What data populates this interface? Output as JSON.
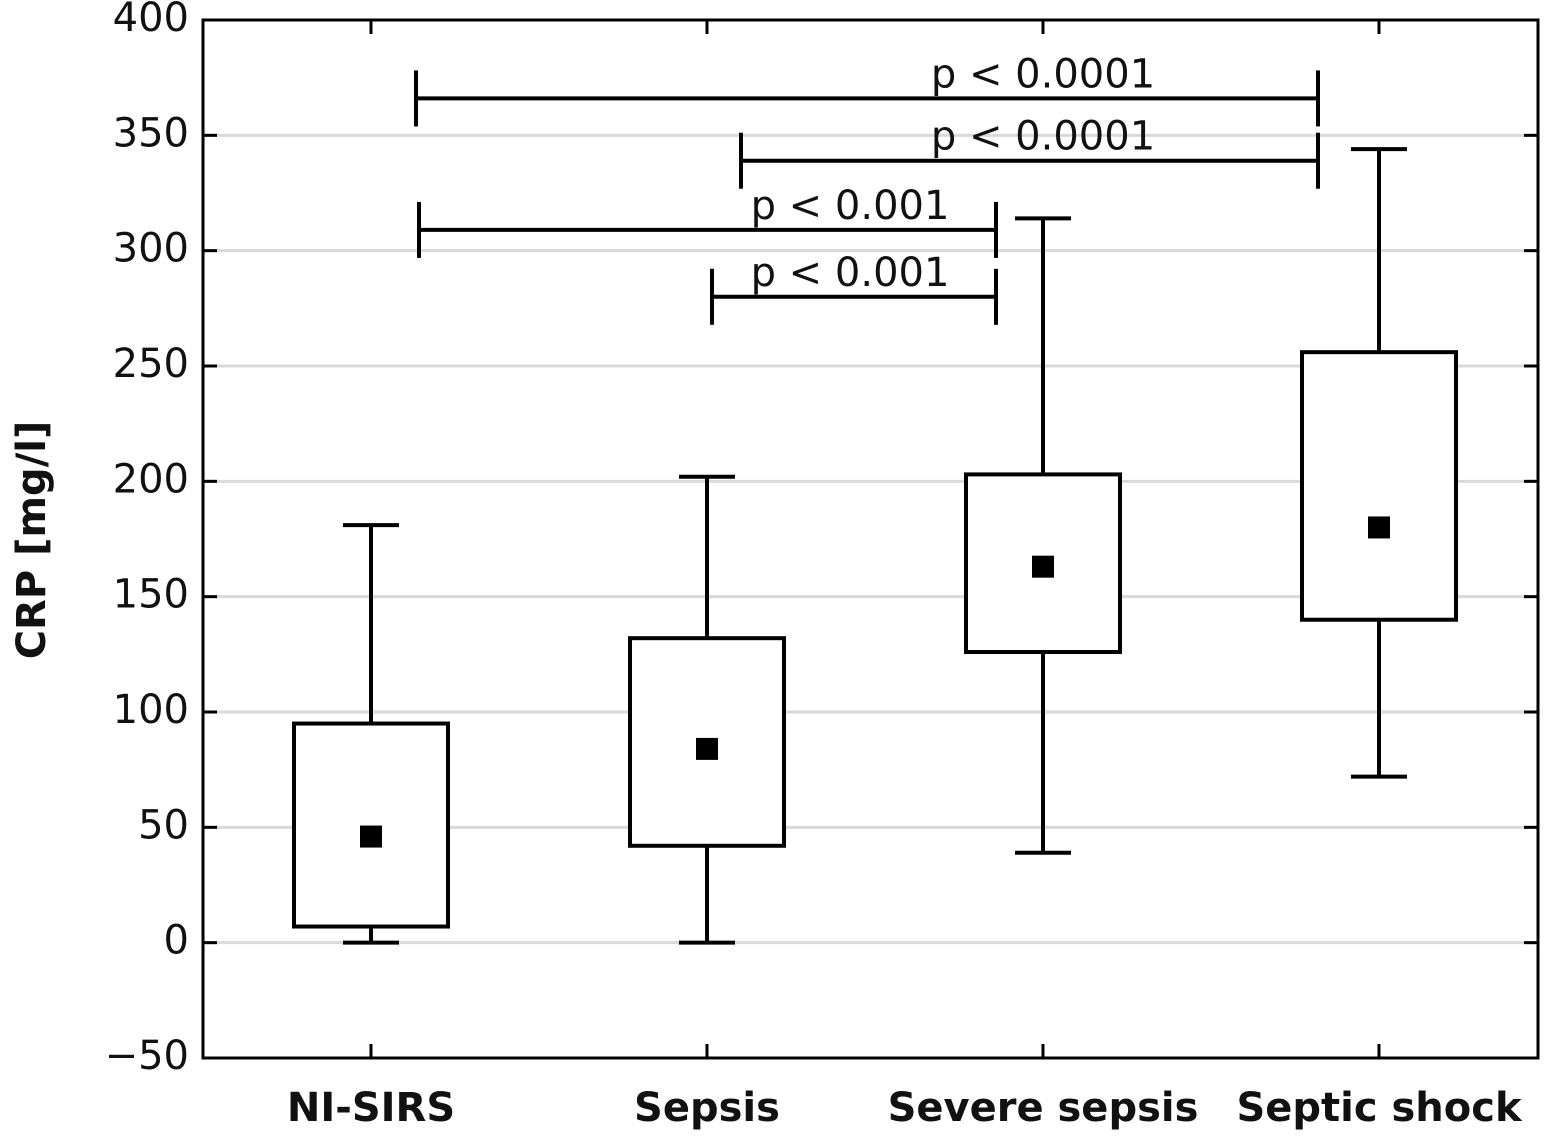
{
  "chart_data": {
    "type": "box",
    "y_label": "CRP [mg/l]",
    "categories": [
      "NI-SIRS",
      "Sepsis",
      "Severe sepsis",
      "Septic shock"
    ],
    "whisker_low": [
      0,
      0,
      39,
      72
    ],
    "q1": [
      7,
      42,
      126,
      140
    ],
    "q3": [
      95,
      132,
      203,
      256
    ],
    "whisker_high": [
      181,
      202,
      314,
      344
    ],
    "mean": [
      46,
      84,
      163,
      180
    ],
    "ylim": [
      -50,
      400
    ],
    "yticks": [
      {
        "value": -50,
        "label": "−50"
      },
      0,
      50,
      100,
      150,
      200,
      250,
      300,
      350,
      400
    ],
    "grid": true,
    "color": "#000000",
    "annotations": [
      {
        "text": "p < 0.0001",
        "y": 366
      },
      {
        "text": "p < 0.0001",
        "y": 339
      },
      {
        "text": "p < 0.001",
        "y": 309
      },
      {
        "text": "p < 0.001",
        "y": 280
      }
    ]
  }
}
